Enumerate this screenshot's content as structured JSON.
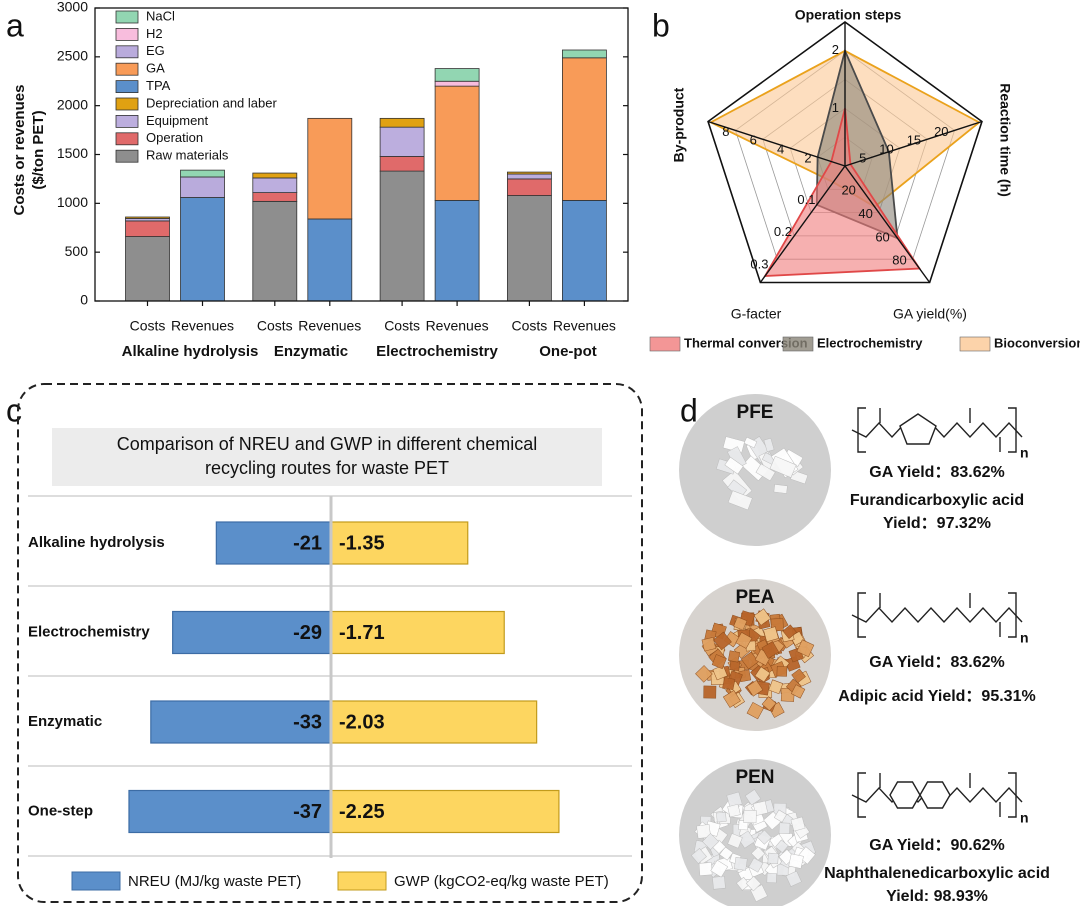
{
  "panel_labels": [
    "a",
    "b",
    "c",
    "d"
  ],
  "chart_data": [
    {
      "type": "bar",
      "stacked": true,
      "ylabel": [
        "Costs or revenues",
        "($/ton PET)"
      ],
      "categories": [
        "Costs",
        "Revenues",
        "Costs",
        "Revenues",
        "Costs",
        "Revenues",
        "Costs",
        "Revenues"
      ],
      "groups": [
        "Alkaline hydrolysis",
        "Enzymatic",
        "Electrochemistry",
        "One-pot"
      ],
      "ylim": [
        0,
        3000
      ],
      "yticks": [
        0,
        500,
        1000,
        1500,
        2000,
        2500,
        3000
      ],
      "legend": "upper left",
      "series": [
        {
          "name": "Raw materials",
          "color": "#8e8e8e",
          "values": [
            660,
            0,
            1020,
            0,
            1330,
            0,
            1080,
            0
          ]
        },
        {
          "name": "Operation",
          "color": "#e06a6a",
          "values": [
            160,
            0,
            90,
            0,
            150,
            0,
            170,
            0
          ]
        },
        {
          "name": "Equipment",
          "color": "#bcaede",
          "values": [
            25,
            0,
            150,
            0,
            300,
            0,
            50,
            0
          ]
        },
        {
          "name": "Depreciation and laber",
          "color": "#e0a112",
          "values": [
            15,
            0,
            50,
            0,
            90,
            0,
            20,
            0
          ]
        },
        {
          "name": "TPA",
          "color": "#5b8fca",
          "values": [
            0,
            1060,
            0,
            840,
            0,
            1030,
            0,
            1030
          ]
        },
        {
          "name": "GA",
          "color": "#f89b58",
          "values": [
            0,
            0,
            0,
            1030,
            0,
            1170,
            0,
            1460
          ]
        },
        {
          "name": "EG",
          "color": "#b9abdc",
          "values": [
            0,
            210,
            0,
            0,
            0,
            0,
            0,
            0
          ]
        },
        {
          "name": "H2",
          "color": "#f8bddd",
          "values": [
            0,
            0,
            0,
            0,
            0,
            50,
            0,
            0
          ]
        },
        {
          "name": "NaCl",
          "color": "#92d6b2",
          "values": [
            0,
            70,
            0,
            0,
            0,
            130,
            0,
            80
          ]
        }
      ]
    },
    {
      "type": "radar",
      "axes": [
        {
          "name": "Operation steps",
          "lim": [
            0,
            2.5
          ],
          "ticks": [
            1,
            2
          ]
        },
        {
          "name": "Reaction time (h)",
          "lim": [
            0,
            25
          ],
          "ticks": [
            5,
            10,
            15,
            20
          ]
        },
        {
          "name": "GA yield(%)",
          "lim": [
            0,
            100
          ],
          "ticks": [
            20,
            40,
            60,
            80
          ]
        },
        {
          "name": "G-facter",
          "lim": [
            0,
            0.36
          ],
          "ticks": [
            0.1,
            0.2,
            0.3
          ]
        },
        {
          "name": "By-product",
          "lim": [
            0,
            10
          ],
          "ticks": [
            2,
            4,
            6,
            8
          ]
        }
      ],
      "series": [
        {
          "name": "Thermal conversion",
          "color": "#f07c7c",
          "values": [
            1,
            1,
            88,
            0.34,
            1
          ]
        },
        {
          "name": "Electrochemistry",
          "color": "#8a8478",
          "values": [
            2,
            8,
            62,
            0.12,
            2
          ]
        },
        {
          "name": "Bioconversion",
          "color": "#fbc895",
          "values": [
            2,
            24.5,
            35,
            0.05,
            9.8
          ]
        }
      ]
    },
    {
      "type": "diverging_bar",
      "title": [
        "Comparison of NREU and GWP in different chemical",
        "recycling routes for waste PET"
      ],
      "categories": [
        "Alkaline hydrolysis",
        "Electrochemistry",
        "Enzymatic",
        "One-step"
      ],
      "series": [
        {
          "name": "NREU (MJ/kg waste PET)",
          "color": "#5b8fca",
          "values": [
            -21,
            -29,
            -33,
            -37
          ]
        },
        {
          "name": "GWP (kgCO2-eq/kg waste PET)",
          "color": "#fdd660",
          "values": [
            -1.35,
            -1.71,
            -2.03,
            -2.25
          ]
        }
      ]
    }
  ],
  "materials": [
    {
      "label": "PFE",
      "ga_yield": "GA Yield：83.62%",
      "acid_yield": [
        "Furandicarboxylic acid",
        "Yield：97.32%"
      ],
      "subscript": "n"
    },
    {
      "label": "PEA",
      "ga_yield": "GA Yield：83.62%",
      "acid_yield": [
        "Adipic acid Yield：95.31%"
      ],
      "subscript": "n"
    },
    {
      "label": "PEN",
      "ga_yield": "GA Yield：90.62%",
      "acid_yield": [
        "Naphthalenedicarboxylic acid",
        "Yield: 98.93%"
      ],
      "subscript": "n"
    }
  ]
}
